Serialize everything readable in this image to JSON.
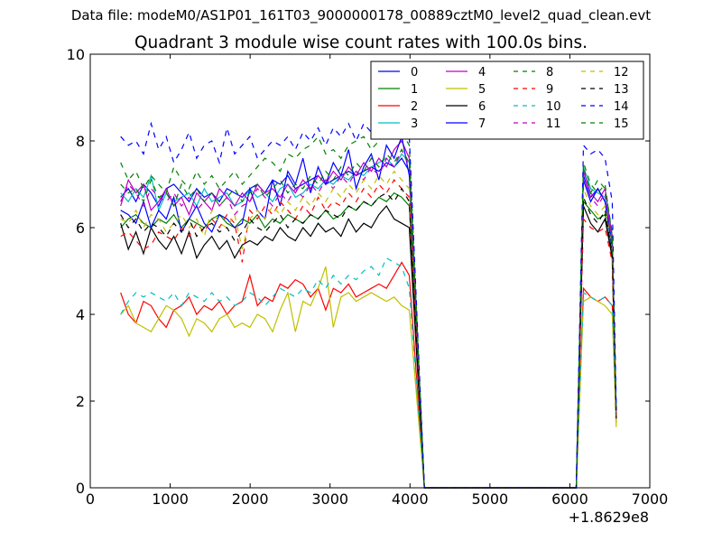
{
  "suptitle": "Data file: modeM0/AS1P01_161T03_9000000178_00889cztM0_level2_quad_clean.evt",
  "chart_data": {
    "type": "line",
    "title": "Quadrant 3 module wise count rates with 100.0s bins.",
    "xlabel": "",
    "ylabel": "",
    "xlim": [
      0,
      7000
    ],
    "ylim": [
      0,
      10
    ],
    "x_ticks": [
      "0",
      "1000",
      "2000",
      "3000",
      "4000",
      "5000",
      "6000",
      "7000"
    ],
    "y_ticks": [
      "0",
      "2",
      "4",
      "6",
      "8",
      "10"
    ],
    "x_offset_label": "+1.8629e8",
    "grid": false,
    "legend": {
      "position": "top-right",
      "columns": 4
    },
    "x": [
      381,
      476,
      571,
      666,
      761,
      856,
      951,
      1046,
      1141,
      1236,
      1331,
      1426,
      1521,
      1616,
      1711,
      1806,
      1901,
      1996,
      2091,
      2186,
      2281,
      2376,
      2471,
      2566,
      2661,
      2756,
      2851,
      2946,
      3041,
      3136,
      3231,
      3326,
      3421,
      3516,
      3611,
      3706,
      3801,
      3896,
      3991,
      4180,
      6080,
      6170,
      6260,
      6350,
      6440,
      6530,
      6580
    ],
    "series": [
      {
        "name": "0",
        "color": "#0000ff",
        "dash": "solid",
        "values": [
          6.7,
          6.9,
          6.6,
          7.0,
          6.8,
          6.5,
          6.9,
          7.0,
          6.8,
          6.6,
          6.9,
          6.7,
          6.8,
          6.6,
          6.9,
          6.8,
          6.7,
          6.9,
          7.0,
          6.8,
          7.1,
          7.0,
          7.2,
          6.9,
          7.0,
          7.1,
          7.2,
          7.0,
          7.1,
          7.2,
          7.3,
          7.2,
          7.3,
          7.4,
          7.3,
          7.5,
          7.4,
          7.6,
          7.3,
          0,
          0,
          7.2,
          6.7,
          6.9,
          6.6,
          5.5,
          1.6
        ]
      },
      {
        "name": "1",
        "color": "#008000",
        "dash": "solid",
        "values": [
          6.0,
          6.2,
          6.3,
          6.1,
          6.0,
          6.2,
          6.1,
          6.3,
          6.0,
          6.2,
          6.1,
          6.0,
          6.2,
          6.3,
          6.1,
          6.0,
          6.2,
          6.1,
          6.3,
          6.0,
          6.2,
          6.1,
          6.3,
          6.2,
          6.1,
          6.3,
          6.2,
          6.4,
          6.2,
          6.3,
          6.5,
          6.4,
          6.6,
          6.5,
          6.7,
          6.6,
          6.8,
          6.7,
          6.5,
          0,
          0,
          6.6,
          6.4,
          6.2,
          6.3,
          5.4,
          1.5
        ]
      },
      {
        "name": "2",
        "color": "#ff0000",
        "dash": "solid",
        "values": [
          4.5,
          4.0,
          3.8,
          4.3,
          4.2,
          3.9,
          3.7,
          4.1,
          4.2,
          4.4,
          4.0,
          4.2,
          4.1,
          4.3,
          4.0,
          4.2,
          4.3,
          4.9,
          4.2,
          4.4,
          4.3,
          4.7,
          4.6,
          4.8,
          4.7,
          4.4,
          4.6,
          4.1,
          4.6,
          4.5,
          4.7,
          4.4,
          4.5,
          4.6,
          4.7,
          4.6,
          4.9,
          5.2,
          4.9,
          0,
          0,
          4.6,
          4.4,
          4.3,
          4.4,
          4.2,
          1.7
        ]
      },
      {
        "name": "3",
        "color": "#00bfbf",
        "dash": "solid",
        "values": [
          6.8,
          6.6,
          6.9,
          6.7,
          7.2,
          6.4,
          6.8,
          6.6,
          6.7,
          6.8,
          6.5,
          6.9,
          6.6,
          6.7,
          6.8,
          6.5,
          6.6,
          6.9,
          6.7,
          6.8,
          6.6,
          6.9,
          7.0,
          6.7,
          6.8,
          7.0,
          6.9,
          7.1,
          7.0,
          7.2,
          7.1,
          7.3,
          7.2,
          7.4,
          7.5,
          7.6,
          7.4,
          7.7,
          7.5,
          0,
          0,
          7.4,
          6.9,
          6.8,
          6.7,
          5.7,
          1.6
        ]
      },
      {
        "name": "4",
        "color": "#bf00bf",
        "dash": "solid",
        "values": [
          6.5,
          7.1,
          6.8,
          7.0,
          6.4,
          6.6,
          6.9,
          6.5,
          6.7,
          6.3,
          6.8,
          6.6,
          6.4,
          6.9,
          6.7,
          6.5,
          6.8,
          6.6,
          7.0,
          6.8,
          6.9,
          6.7,
          7.0,
          6.8,
          7.1,
          6.9,
          7.2,
          7.0,
          7.3,
          7.1,
          7.4,
          7.2,
          7.5,
          7.3,
          7.6,
          7.4,
          7.8,
          8.0,
          7.6,
          0,
          0,
          7.3,
          6.8,
          6.6,
          6.9,
          5.8,
          1.8
        ]
      },
      {
        "name": "5",
        "color": "#bfbf00",
        "dash": "solid",
        "values": [
          4.0,
          4.2,
          3.8,
          3.7,
          3.6,
          3.9,
          4.2,
          4.1,
          3.9,
          3.5,
          3.9,
          3.8,
          3.6,
          3.9,
          4.0,
          3.7,
          3.8,
          3.7,
          4.0,
          3.9,
          3.6,
          4.1,
          4.5,
          3.6,
          4.3,
          4.2,
          4.6,
          5.1,
          3.7,
          4.4,
          4.5,
          4.3,
          4.4,
          4.5,
          4.4,
          4.3,
          4.4,
          4.2,
          4.1,
          0,
          0,
          4.3,
          4.4,
          4.3,
          4.2,
          4.0,
          1.4
        ]
      },
      {
        "name": "6",
        "color": "#000000",
        "dash": "solid",
        "values": [
          6.1,
          5.5,
          5.9,
          5.4,
          6.0,
          5.7,
          5.5,
          5.8,
          5.4,
          5.9,
          5.3,
          5.6,
          5.8,
          5.5,
          5.7,
          5.3,
          5.6,
          5.7,
          5.6,
          5.8,
          5.7,
          6.0,
          5.8,
          5.7,
          6.0,
          5.8,
          6.1,
          5.9,
          6.0,
          5.8,
          6.2,
          5.9,
          6.1,
          6.0,
          6.3,
          6.5,
          6.2,
          6.1,
          6.0,
          0,
          0,
          6.5,
          6.1,
          5.9,
          6.2,
          5.3,
          1.6
        ]
      },
      {
        "name": "7",
        "color": "#0000ff",
        "dash": "solid",
        "values": [
          6.4,
          6.3,
          6.1,
          6.6,
          6.0,
          6.4,
          6.2,
          6.7,
          5.9,
          6.2,
          6.5,
          6.1,
          5.9,
          6.3,
          6.2,
          6.0,
          6.1,
          6.9,
          6.4,
          6.2,
          7.1,
          6.5,
          7.3,
          7.0,
          7.6,
          6.8,
          7.4,
          7.0,
          7.5,
          7.2,
          7.8,
          6.9,
          7.4,
          7.7,
          7.1,
          7.9,
          7.6,
          8.1,
          7.2,
          0,
          0,
          7.1,
          6.6,
          6.9,
          6.6,
          5.6,
          1.7
        ]
      },
      {
        "name": "8",
        "color": "#008000",
        "dash": "dashed",
        "values": [
          7.5,
          7.1,
          7.3,
          6.9,
          7.2,
          7.0,
          6.8,
          7.4,
          7.1,
          6.9,
          7.3,
          7.0,
          7.2,
          6.9,
          7.1,
          7.3,
          7.0,
          7.2,
          7.4,
          7.6,
          7.5,
          7.3,
          7.7,
          7.6,
          7.8,
          7.9,
          8.1,
          7.7,
          7.8,
          7.6,
          7.9,
          8.0,
          8.1,
          7.8,
          8.0,
          8.3,
          8.1,
          8.2,
          7.9,
          0,
          0,
          7.4,
          6.8,
          7.1,
          6.9,
          5.9,
          1.6
        ]
      },
      {
        "name": "9",
        "color": "#ff0000",
        "dash": "dashed",
        "values": [
          5.8,
          5.9,
          5.7,
          5.5,
          5.6,
          5.9,
          5.8,
          5.7,
          6.0,
          5.8,
          6.1,
          5.9,
          6.2,
          6.0,
          6.3,
          6.1,
          5.2,
          6.4,
          6.2,
          6.5,
          6.3,
          6.6,
          6.4,
          6.2,
          6.5,
          6.3,
          6.7,
          6.4,
          6.6,
          6.5,
          6.8,
          6.6,
          6.9,
          6.7,
          7.0,
          6.8,
          7.1,
          6.9,
          6.7,
          0,
          0,
          6.2,
          6.0,
          5.9,
          6.0,
          5.2,
          1.5
        ]
      },
      {
        "name": "10",
        "color": "#00bfbf",
        "dash": "dashed",
        "values": [
          4.0,
          4.3,
          4.5,
          4.4,
          4.5,
          4.4,
          4.3,
          4.5,
          4.2,
          4.5,
          4.4,
          4.3,
          4.5,
          4.3,
          4.4,
          4.2,
          4.3,
          4.5,
          4.4,
          4.2,
          4.4,
          4.6,
          4.5,
          4.4,
          4.6,
          4.5,
          4.8,
          4.6,
          4.9,
          4.7,
          4.9,
          4.8,
          5.0,
          5.1,
          4.9,
          5.3,
          5.2,
          5.1,
          4.6,
          0,
          0,
          4.5,
          4.4,
          4.3,
          4.4,
          4.2,
          1.6
        ]
      },
      {
        "name": "11",
        "color": "#bf00bf",
        "dash": "dashed",
        "values": [
          6.6,
          7.0,
          6.8,
          6.5,
          6.9,
          6.7,
          6.6,
          6.8,
          6.5,
          6.7,
          6.4,
          6.6,
          6.8,
          6.5,
          6.7,
          6.3,
          6.5,
          6.6,
          6.9,
          6.7,
          6.5,
          6.8,
          6.6,
          6.9,
          6.7,
          7.0,
          6.8,
          7.1,
          6.9,
          7.2,
          7.0,
          7.3,
          7.1,
          7.4,
          7.2,
          7.6,
          7.4,
          7.8,
          7.4,
          0,
          0,
          7.2,
          6.7,
          6.5,
          6.8,
          5.6,
          1.7
        ]
      },
      {
        "name": "12",
        "color": "#bfbf00",
        "dash": "dashed",
        "values": [
          6.2,
          6.1,
          6.4,
          6.0,
          6.3,
          6.2,
          5.9,
          6.1,
          6.3,
          6.0,
          6.2,
          5.8,
          6.4,
          6.1,
          6.0,
          6.3,
          5.5,
          6.2,
          6.4,
          6.2,
          6.5,
          6.3,
          6.6,
          6.4,
          6.7,
          6.5,
          6.8,
          6.6,
          6.9,
          6.7,
          7.0,
          6.8,
          7.1,
          6.9,
          7.2,
          7.0,
          7.3,
          7.1,
          6.9,
          0,
          0,
          6.9,
          6.5,
          6.3,
          6.5,
          5.5,
          1.5
        ]
      },
      {
        "name": "13",
        "color": "#000000",
        "dash": "dashed",
        "values": [
          6.3,
          6.0,
          6.2,
          5.9,
          6.1,
          6.0,
          5.8,
          6.1,
          5.9,
          6.2,
          5.8,
          6.0,
          6.1,
          5.9,
          6.0,
          5.7,
          5.9,
          6.2,
          6.0,
          5.9,
          6.1,
          6.3,
          6.0,
          6.2,
          6.1,
          6.3,
          6.2,
          6.4,
          6.3,
          6.2,
          6.5,
          6.4,
          6.6,
          6.5,
          6.7,
          6.8,
          6.6,
          6.9,
          6.6,
          0,
          0,
          6.7,
          6.3,
          6.1,
          6.4,
          5.4,
          1.6
        ]
      },
      {
        "name": "14",
        "color": "#0000ff",
        "dash": "dashed",
        "values": [
          8.1,
          7.9,
          8.0,
          7.7,
          8.4,
          7.8,
          8.1,
          7.5,
          7.8,
          8.2,
          7.6,
          7.9,
          8.0,
          7.5,
          8.3,
          7.7,
          7.9,
          8.1,
          7.6,
          7.8,
          8.0,
          7.9,
          8.1,
          7.8,
          8.2,
          8.0,
          8.3,
          7.9,
          8.3,
          8.1,
          8.4,
          8.0,
          8.4,
          8.2,
          8.5,
          8.3,
          8.6,
          8.4,
          8.1,
          0,
          0,
          7.9,
          7.7,
          7.8,
          7.6,
          6.6,
          1.9
        ]
      },
      {
        "name": "15",
        "color": "#008000",
        "dash": "dashed",
        "values": [
          7.0,
          6.8,
          6.9,
          6.6,
          7.1,
          6.7,
          6.8,
          6.5,
          7.0,
          6.7,
          6.9,
          6.6,
          6.8,
          6.5,
          6.7,
          6.9,
          6.6,
          6.8,
          7.0,
          6.7,
          6.9,
          7.1,
          6.8,
          7.0,
          6.9,
          7.2,
          7.0,
          7.3,
          7.1,
          7.4,
          7.2,
          7.5,
          7.3,
          7.6,
          7.4,
          7.7,
          7.5,
          7.8,
          7.5,
          0,
          0,
          7.5,
          7.0,
          6.8,
          7.0,
          5.8,
          1.7
        ]
      }
    ]
  }
}
